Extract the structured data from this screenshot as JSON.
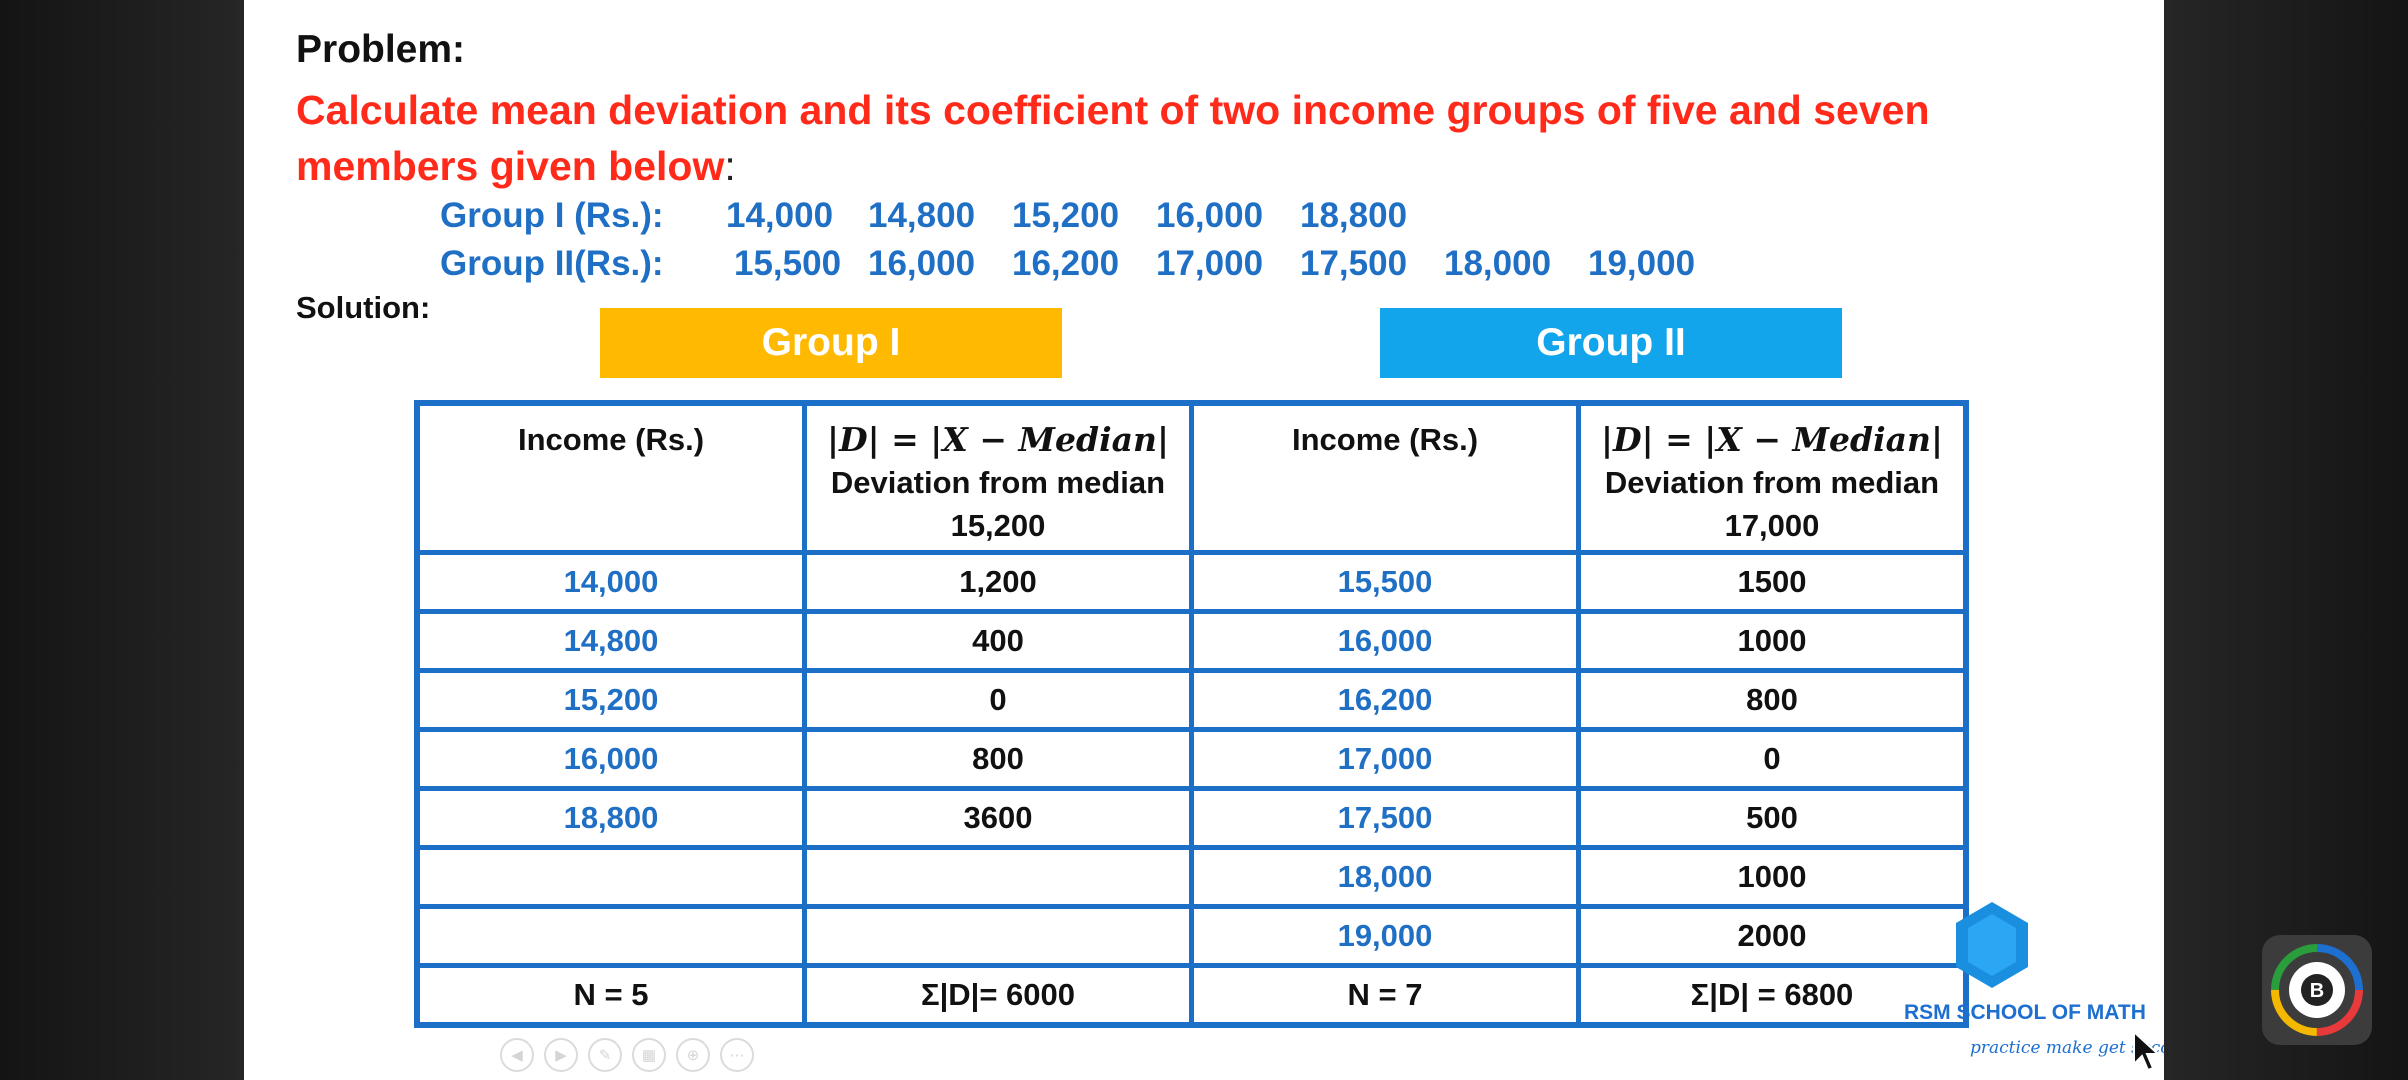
{
  "problem": {
    "title": "Problem:",
    "text": "Calculate mean deviation and its coefficient of two income groups of five and seven members given below",
    "colon": ":"
  },
  "groups": {
    "group1_label": "Group I (Rs.):",
    "group1_values": [
      "14,000",
      "14,800",
      "15,200",
      "16,000",
      "18,800"
    ],
    "group2_label": "Group II(Rs.):",
    "group2_values": [
      "15,500",
      "16,000",
      "16,200",
      "17,000",
      "17,500",
      "18,000",
      "19,000"
    ]
  },
  "solution_label": "Solution:",
  "banners": {
    "group1": "Group I",
    "group2": "Group II"
  },
  "table": {
    "header": {
      "income": "Income (Rs.)",
      "formula": "|D| = |X − Median|",
      "deviation": "Deviation from median",
      "median1": "15,200",
      "median2": "17,000"
    },
    "rows": [
      [
        "14,000",
        "1,200",
        "15,500",
        "1500"
      ],
      [
        "14,800",
        "400",
        "16,000",
        "1000"
      ],
      [
        "15,200",
        "0",
        "16,200",
        "800"
      ],
      [
        "16,000",
        "800",
        "17,000",
        "0"
      ],
      [
        "18,800",
        "3600",
        "17,500",
        "500"
      ],
      [
        "",
        "",
        "18,000",
        "1000"
      ],
      [
        "",
        "",
        "19,000",
        "2000"
      ]
    ],
    "footer": [
      "N = 5",
      "Σ|D|= 6000",
      "N = 7",
      "Σ|D| = 6800"
    ]
  },
  "brand": {
    "name": "RSM SCHOOL OF MATH",
    "tagline": "practice make get success"
  },
  "colors": {
    "problem_text": "#ff2a1a",
    "group_blue": "#1f6fc4",
    "banner1": "#ffb900",
    "banner2": "#12a5ec",
    "table_border": "#1c6fc7"
  }
}
